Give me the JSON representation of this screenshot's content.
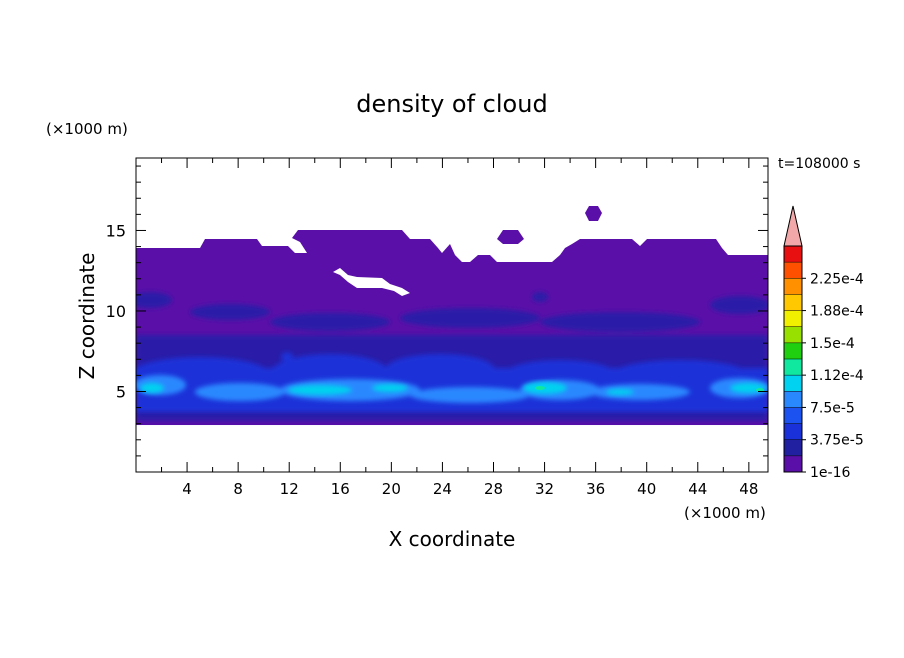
{
  "chart_data": {
    "type": "heatmap",
    "title": "density of cloud",
    "xlabel": "X coordinate",
    "ylabel": "Z coordinate",
    "x_unit": "(×1000 m)",
    "y_unit": "(×1000 m)",
    "time_label": "t=108000 s",
    "xlim": [
      0,
      49.5
    ],
    "ylim": [
      0,
      19.5
    ],
    "x_ticks": [
      4,
      8,
      12,
      16,
      20,
      24,
      28,
      32,
      36,
      40,
      44,
      48
    ],
    "y_ticks": [
      5,
      10,
      15
    ],
    "colorbar": {
      "levels": [
        1e-16,
        1.875e-05,
        3.75e-05,
        5.625e-05,
        7.5e-05,
        9.375e-05,
        0.0001125,
        0.00013125,
        0.00015,
        0.00016875,
        0.0001875,
        0.00020625,
        0.000225,
        0.00024375
      ],
      "tick_labels": [
        "1e-16",
        "3.75e-5",
        "7.5e-5",
        "1.12e-4",
        "1.5e-4",
        "1.88e-4",
        "2.25e-4"
      ],
      "colors": [
        "#5a10a8",
        "#2020a0",
        "#1a30d8",
        "#1c52f0",
        "#2a88ff",
        "#00d2f0",
        "#10e8a0",
        "#20d010",
        "#98e000",
        "#f0f000",
        "#ffc800",
        "#ff9000",
        "#ff5000",
        "#e81010"
      ],
      "overflow_color": "#f2a8a8"
    },
    "regions": [
      {
        "level_index": 0,
        "description_ref": "cloud layer",
        "z_range": [
          3.3,
          14.8
        ]
      },
      {
        "level_index": 2,
        "z_range": [
          3.8,
          6.5
        ]
      },
      {
        "level_index": 4,
        "z_range": [
          4.2,
          6.2
        ]
      },
      {
        "level_index": 5,
        "z_range": [
          4.6,
          5.7
        ]
      }
    ]
  }
}
